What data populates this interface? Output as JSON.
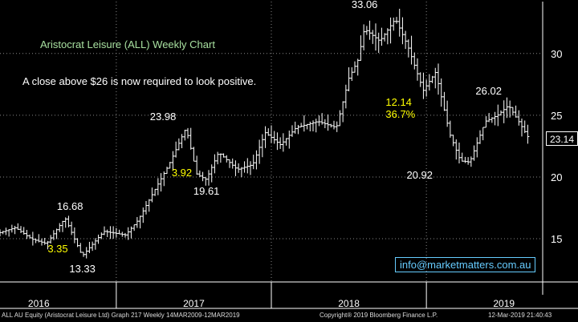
{
  "chart_data": {
    "type": "ohlc",
    "title": "Aristocrat Leisure (ALL) Weekly Chart",
    "subtitle": "A close above $26 is now required to look positive.",
    "y_ticks": [
      "15",
      "20",
      "25",
      "30"
    ],
    "ylim": [
      11.5,
      34.2
    ],
    "xlim": [
      2015.75,
      2019.25
    ],
    "x_ticks": [
      {
        "label": "2016",
        "x": 2016.0
      },
      {
        "label": "2017",
        "x": 2017.0
      },
      {
        "label": "2018",
        "x": 2018.0
      },
      {
        "label": "2019",
        "x": 2019.0
      }
    ],
    "year_dividers": [
      2016.5,
      2017.5,
      2018.5
    ],
    "last_price": "23.14",
    "last_price_value": 23.14,
    "annotations": [
      {
        "id": "high-16-68",
        "text": "16.68",
        "color": "#ffffff",
        "x": 2016.2,
        "y": 16.68
      },
      {
        "id": "low-13-33",
        "text": "13.33",
        "color": "#ffffff",
        "x": 2016.28,
        "y": 13.33
      },
      {
        "id": "chg-3-35",
        "text": "3.35",
        "color": "#ffff00",
        "x": 2016.14,
        "y": 14.15
      },
      {
        "id": "high-23-98",
        "text": "23.98",
        "color": "#ffffff",
        "x": 2016.8,
        "y": 23.98
      },
      {
        "id": "low-19-61",
        "text": "19.61",
        "color": "#ffffff",
        "x": 2017.08,
        "y": 19.61
      },
      {
        "id": "chg-3-92",
        "text": "3.92",
        "color": "#ffff00",
        "x": 2016.94,
        "y": 20.3
      },
      {
        "id": "high-33-06",
        "text": "33.06",
        "color": "#ffffff",
        "x": 2018.1,
        "y": 33.06
      },
      {
        "id": "chg-12-14",
        "text": "12.14",
        "color": "#ffff00",
        "x": 2018.32,
        "y": 25.8
      },
      {
        "id": "chg-36-7",
        "text": "36.7%",
        "color": "#ffff00",
        "x": 2018.32,
        "y": 24.8
      },
      {
        "id": "low-20-92",
        "text": "20.92",
        "color": "#ffffff",
        "x": 2018.6,
        "y": 20.92
      },
      {
        "id": "high-26-02",
        "text": "26.02",
        "color": "#ffffff",
        "x": 2018.9,
        "y": 26.02
      }
    ],
    "anchors": [
      [
        2015.75,
        15.5
      ],
      [
        2015.85,
        15.9
      ],
      [
        2015.95,
        15.0
      ],
      [
        2016.05,
        14.6
      ],
      [
        2016.17,
        16.68
      ],
      [
        2016.28,
        13.6
      ],
      [
        2016.42,
        15.6
      ],
      [
        2016.56,
        15.3
      ],
      [
        2016.64,
        16.5
      ],
      [
        2016.75,
        19.0
      ],
      [
        2016.84,
        21.0
      ],
      [
        2016.95,
        23.98
      ],
      [
        2017.02,
        20.2
      ],
      [
        2017.08,
        19.8
      ],
      [
        2017.16,
        22.0
      ],
      [
        2017.28,
        20.6
      ],
      [
        2017.38,
        21.0
      ],
      [
        2017.46,
        23.6
      ],
      [
        2017.56,
        22.6
      ],
      [
        2017.66,
        24.0
      ],
      [
        2017.8,
        24.5
      ],
      [
        2017.92,
        24.0
      ],
      [
        2018.0,
        28.0
      ],
      [
        2018.06,
        29.5
      ],
      [
        2018.1,
        32.0
      ],
      [
        2018.2,
        31.0
      ],
      [
        2018.3,
        32.8
      ],
      [
        2018.38,
        30.6
      ],
      [
        2018.48,
        27.0
      ],
      [
        2018.56,
        28.5
      ],
      [
        2018.65,
        23.5
      ],
      [
        2018.72,
        21.3
      ],
      [
        2018.78,
        21.2
      ],
      [
        2018.88,
        24.5
      ],
      [
        2018.96,
        25.0
      ],
      [
        2019.03,
        25.8
      ],
      [
        2019.1,
        24.4
      ],
      [
        2019.16,
        23.14
      ]
    ]
  },
  "email": "info@marketmatters.com.au",
  "footer": {
    "left": "ALL AU Equity (Aristocrat Leisure Ltd) Graph 217  Weekly 14MAR2009-12MAR2019",
    "center": "Copyright® 2019 Bloomberg Finance L.P.",
    "right": "12-Mar-2019 21:40:43"
  }
}
